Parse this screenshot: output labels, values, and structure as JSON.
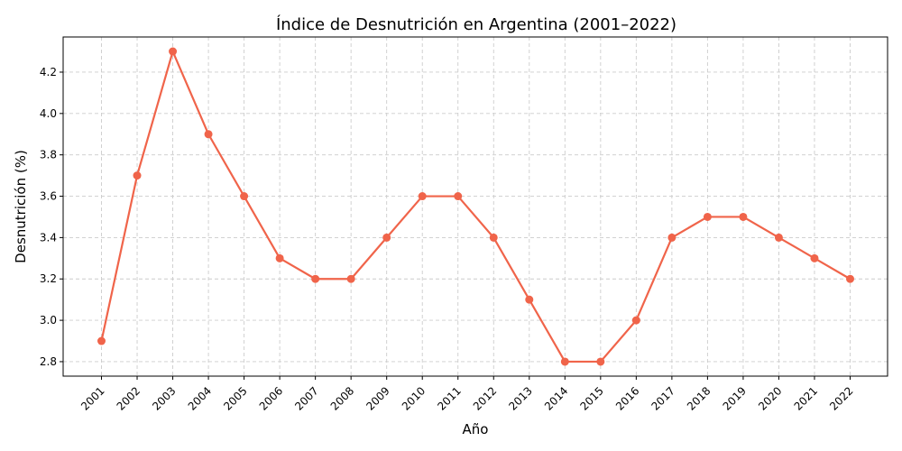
{
  "chart_data": {
    "type": "line",
    "title": "Índice de Desnutrición en Argentina (2001–2022)",
    "xlabel": "Año",
    "ylabel": "Desnutrición (%)",
    "x": [
      "2001",
      "2002",
      "2003",
      "2004",
      "2005",
      "2006",
      "2007",
      "2008",
      "2009",
      "2010",
      "2011",
      "2012",
      "2013",
      "2014",
      "2015",
      "2016",
      "2017",
      "2018",
      "2019",
      "2020",
      "2021",
      "2022"
    ],
    "values": [
      2.9,
      3.7,
      4.3,
      3.9,
      3.6,
      3.3,
      3.2,
      3.2,
      3.4,
      3.6,
      3.6,
      3.4,
      3.1,
      2.8,
      2.8,
      3.0,
      3.4,
      3.5,
      3.5,
      3.4,
      3.3,
      3.2
    ],
    "yticks": [
      "2.8",
      "3.0",
      "3.2",
      "3.4",
      "3.6",
      "3.8",
      "4.0",
      "4.2"
    ],
    "ylim": [
      2.73,
      4.37
    ],
    "grid": true,
    "line_color": "#f0644a",
    "marker": "circle"
  }
}
